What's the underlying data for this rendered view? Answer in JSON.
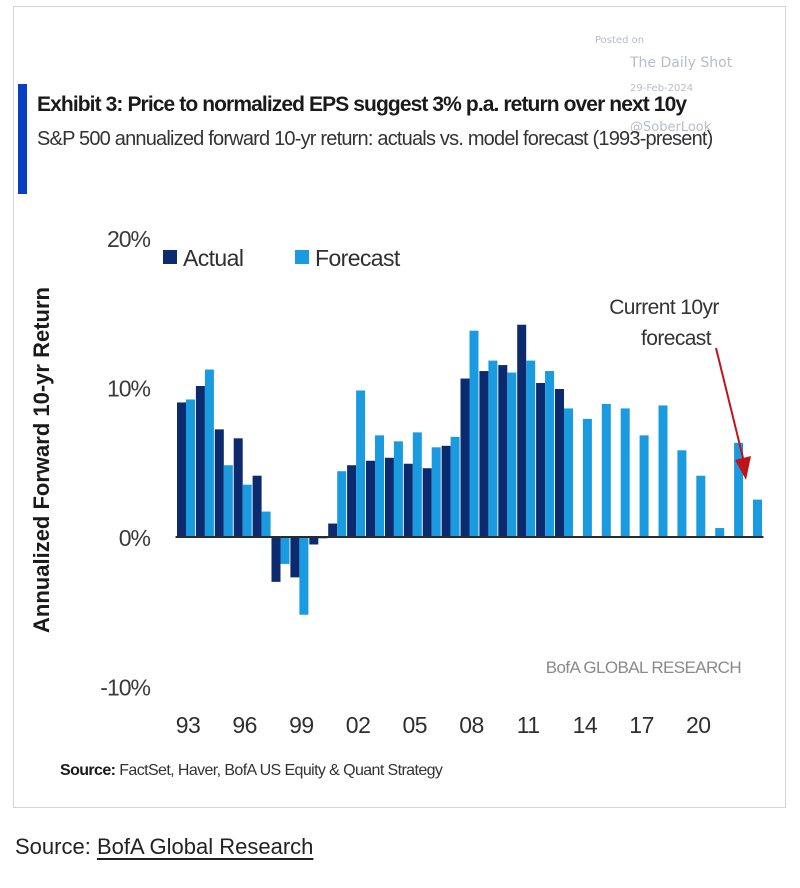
{
  "card": {
    "title": "Exhibit 3: Price to normalized EPS suggest 3% p.a. return over next 10y",
    "subtitle": "S&P 500 annualized forward 10-yr return: actuals vs. model forecast (1993-present)",
    "watermark": {
      "posted_on": "Posted on",
      "publisher": "The Daily Shot",
      "date": "29-Feb-2024",
      "handle": "@SoberLook"
    },
    "branding": "BofA GLOBAL RESEARCH",
    "source_label": "Source:",
    "source_text": "FactSet, Haver, BofA US Equity & Quant Strategy",
    "accent_color": "#0a3fc2"
  },
  "footer": {
    "source_label": "Source:",
    "source_link": "BofA Global Research"
  },
  "chart_data": {
    "type": "bar",
    "title": "Exhibit 3: Price to normalized EPS suggest 3% p.a. return over next 10y",
    "subtitle": "S&P 500 annualized forward 10-yr return: actuals vs. model forecast (1993-present)",
    "xlabel": "",
    "ylabel": "Annualized Forward 10-yr Return",
    "ylim": [
      -10,
      20
    ],
    "yticks": [
      20,
      10,
      0,
      -10
    ],
    "ytick_labels": [
      "20%",
      "10%",
      "0%",
      "-10%"
    ],
    "categories": [
      "1993",
      "1994",
      "1995",
      "1996",
      "1997",
      "1998",
      "1999",
      "2000",
      "2001",
      "2002",
      "2003",
      "2004",
      "2005",
      "2006",
      "2007",
      "2008",
      "2009",
      "2010",
      "2011",
      "2012",
      "2013",
      "2014",
      "2015",
      "2016",
      "2017",
      "2018",
      "2019",
      "2020",
      "2021",
      "2022",
      "2023"
    ],
    "xtick_labels": [
      "93",
      "96",
      "99",
      "02",
      "05",
      "08",
      "11",
      "14",
      "17",
      "20"
    ],
    "xtick_every": 3,
    "series": [
      {
        "name": "Actual",
        "color": "#0c2a6e",
        "values": [
          9.0,
          10.1,
          7.2,
          6.6,
          4.1,
          -3.0,
          -2.7,
          -0.5,
          0.9,
          4.8,
          5.1,
          5.3,
          4.9,
          4.6,
          6.1,
          10.6,
          11.1,
          11.5,
          14.2,
          10.3,
          9.9,
          null,
          null,
          null,
          null,
          null,
          null,
          null,
          null,
          null,
          null
        ]
      },
      {
        "name": "Forecast",
        "color": "#1a9be0",
        "values": [
          9.2,
          11.2,
          4.8,
          3.5,
          1.7,
          -1.8,
          -5.2,
          -0.1,
          4.4,
          9.8,
          6.8,
          6.4,
          7.0,
          6.0,
          6.7,
          13.8,
          11.8,
          11.0,
          11.8,
          11.1,
          8.6,
          7.9,
          8.9,
          8.6,
          6.8,
          8.8,
          5.8,
          4.1,
          0.6,
          6.3,
          2.5
        ]
      }
    ],
    "legend": {
      "position": "top-left",
      "entries": [
        "Actual",
        "Forecast"
      ]
    },
    "annotations": [
      {
        "text_line1": "Current 10yr",
        "text_line2": "forecast",
        "points_to": "2023",
        "arrow_color": "#c0141b"
      }
    ],
    "grid": false
  }
}
